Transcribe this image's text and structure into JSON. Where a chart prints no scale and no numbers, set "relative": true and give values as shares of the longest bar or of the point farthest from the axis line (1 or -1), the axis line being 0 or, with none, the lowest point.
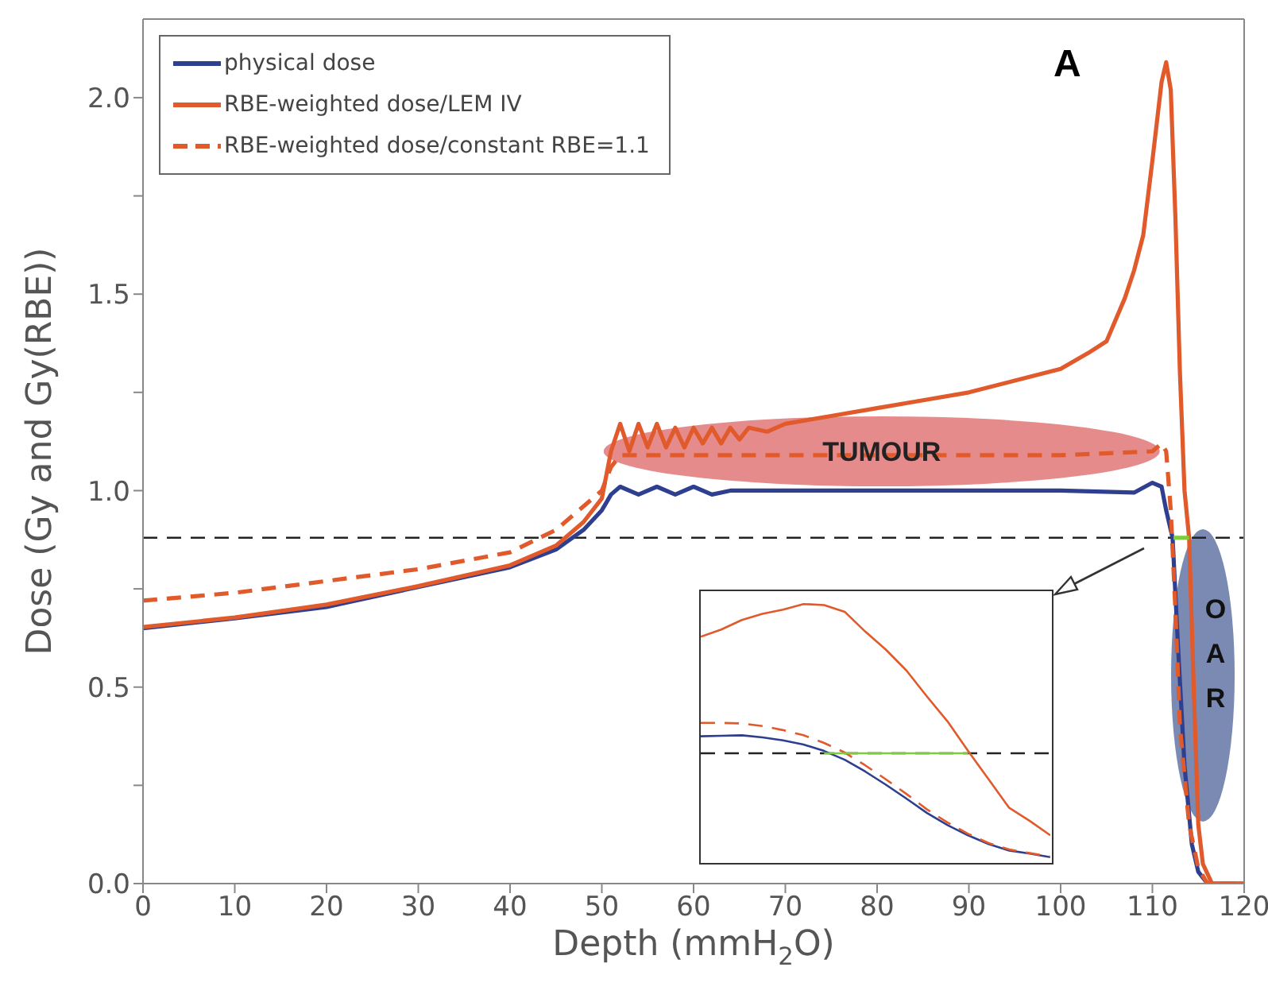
{
  "chart_data": [
    {
      "type": "line",
      "xlabel": "Depth (mmH$_{2}$O)",
      "ylabel": "Dose (Gy and Gy(RBE))",
      "xlim": [
        0,
        120
      ],
      "xticks": [
        0,
        10,
        20,
        30,
        40,
        50,
        60,
        70,
        80,
        90,
        100,
        110,
        120
      ],
      "ylim": [
        0,
        2.2
      ],
      "yticks": [
        {
          "value": 0,
          "label": "0.0"
        },
        {
          "value": 0.25,
          "label": null
        },
        {
          "value": 0.5,
          "label": "0.5"
        },
        {
          "value": 0.75,
          "label": null
        },
        {
          "value": 1,
          "label": "1.0"
        },
        {
          "value": 1.25,
          "label": null
        },
        {
          "value": 1.5,
          "label": "1.5"
        },
        {
          "value": 1.75,
          "label": null
        },
        {
          "value": 2,
          "label": "2.0"
        }
      ],
      "legend": "top left",
      "annotations": [
        "A",
        {
          "text": "TUMOUR",
          "x": 80.5,
          "y": 1.1
        },
        {
          "text": "OAR",
          "x": 115.5,
          "y": 0.53
        }
      ],
      "ref_lines": [
        {
          "axis": "y",
          "value": 0.88,
          "color": "#222222",
          "line_style": "dashed"
        }
      ],
      "series": [
        {
          "name": "physical dose",
          "color": "#2e3f8f",
          "line_style": "solid",
          "x": [
            0,
            10,
            20,
            30,
            40,
            45,
            48,
            50,
            51,
            52,
            54,
            56,
            58,
            60,
            62,
            64,
            70,
            80,
            90,
            100,
            108,
            110,
            111,
            111.5,
            112.2,
            112.8,
            113.5,
            114.3,
            115,
            116,
            120
          ],
          "values": [
            0.65,
            0.675,
            0.704,
            0.755,
            0.805,
            0.85,
            0.9,
            0.95,
            0.99,
            1.01,
            0.99,
            1.01,
            0.99,
            1.01,
            0.99,
            1.0,
            1.0,
            1.0,
            1.0,
            1.0,
            0.995,
            1.02,
            1.01,
            0.95,
            0.88,
            0.6,
            0.3,
            0.1,
            0.03,
            0,
            0
          ]
        },
        {
          "name": "RBE-weighted dose/LEM IV",
          "color": "#e05a2b",
          "line_style": "solid",
          "x": [
            0,
            10,
            20,
            30,
            40,
            45,
            48,
            50,
            51,
            52,
            53,
            54,
            55,
            56,
            57,
            58,
            59,
            60,
            61,
            62,
            63,
            64,
            65,
            66,
            68,
            70,
            75,
            80,
            85,
            90,
            95,
            100,
            103,
            105,
            107,
            108,
            109,
            110,
            111,
            111.5,
            112,
            112.5,
            113,
            113.5,
            114,
            114.5,
            115,
            115.5,
            116.5,
            120
          ],
          "values": [
            0.653,
            0.677,
            0.71,
            0.757,
            0.81,
            0.86,
            0.92,
            0.98,
            1.1,
            1.17,
            1.1,
            1.17,
            1.11,
            1.17,
            1.11,
            1.16,
            1.11,
            1.16,
            1.12,
            1.16,
            1.12,
            1.16,
            1.13,
            1.16,
            1.15,
            1.17,
            1.19,
            1.21,
            1.23,
            1.25,
            1.28,
            1.31,
            1.35,
            1.38,
            1.49,
            1.56,
            1.65,
            1.84,
            2.04,
            2.09,
            2.02,
            1.7,
            1.3,
            1.0,
            0.88,
            0.5,
            0.15,
            0.05,
            0,
            0
          ]
        },
        {
          "name": "RBE-weighted dose/constant RBE=1.1",
          "color": "#e05a2b",
          "line_style": "dashed",
          "x": [
            0,
            10,
            20,
            30,
            40,
            45,
            50,
            51,
            52,
            60,
            70,
            80,
            90,
            100,
            110,
            111,
            111.5,
            112,
            112.5,
            113,
            114,
            115,
            116,
            120
          ],
          "values": [
            0.72,
            0.74,
            0.77,
            0.8,
            0.843,
            0.9,
            1.0,
            1.06,
            1.09,
            1.09,
            1.09,
            1.09,
            1.09,
            1.09,
            1.1,
            1.12,
            1.1,
            0.95,
            0.7,
            0.4,
            0.15,
            0.04,
            0,
            0
          ]
        },
        {
          "color": "#7ccc3c",
          "line_style": "solid",
          "x": [
            112.3,
            114.0
          ],
          "values": [
            0.88,
            0.88
          ]
        }
      ]
    },
    {
      "type": "line",
      "relative": true,
      "categories": [
        null,
        null,
        null,
        null,
        null,
        null,
        null,
        null,
        null,
        null,
        null,
        null,
        null,
        null,
        null,
        null,
        null,
        null
      ],
      "ref_lines": [
        {
          "axis": "y",
          "value": 0.42,
          "color": "#222222",
          "line_style": "dashed"
        }
      ],
      "series": [
        {
          "color": "#e05a2b",
          "line_style": "solid",
          "values": [
            0.873,
            0.901,
            0.938,
            0.962,
            0.978,
            1,
            0.996,
            0.97,
            0.893,
            0.823,
            0.742,
            0.641,
            0.544,
            0.429,
            0.319,
            0.208,
            0.157,
            0.101
          ]
        },
        {
          "color": "#2e3f8f",
          "line_style": "solid",
          "values": [
            0.486,
            0.488,
            0.49,
            0.482,
            0.47,
            0.454,
            0.429,
            0.395,
            0.349,
            0.298,
            0.244,
            0.188,
            0.141,
            0.101,
            0.067,
            0.042,
            0.03,
            0.016
          ]
        },
        {
          "color": "#e05a2b",
          "line_style": "dashed",
          "values": [
            0.538,
            0.538,
            0.536,
            0.526,
            0.51,
            0.49,
            0.46,
            0.423,
            0.373,
            0.319,
            0.262,
            0.202,
            0.151,
            0.107,
            0.071,
            0.046,
            0.032,
            0.018
          ]
        },
        {
          "color": "#7ccc3c",
          "line_style": "solid",
          "values": [
            null,
            null,
            null,
            null,
            null,
            null,
            0.42,
            0.42,
            0.42,
            0.42,
            0.42,
            0.42,
            0.42,
            0.42,
            null,
            null,
            null,
            null
          ]
        }
      ]
    }
  ]
}
